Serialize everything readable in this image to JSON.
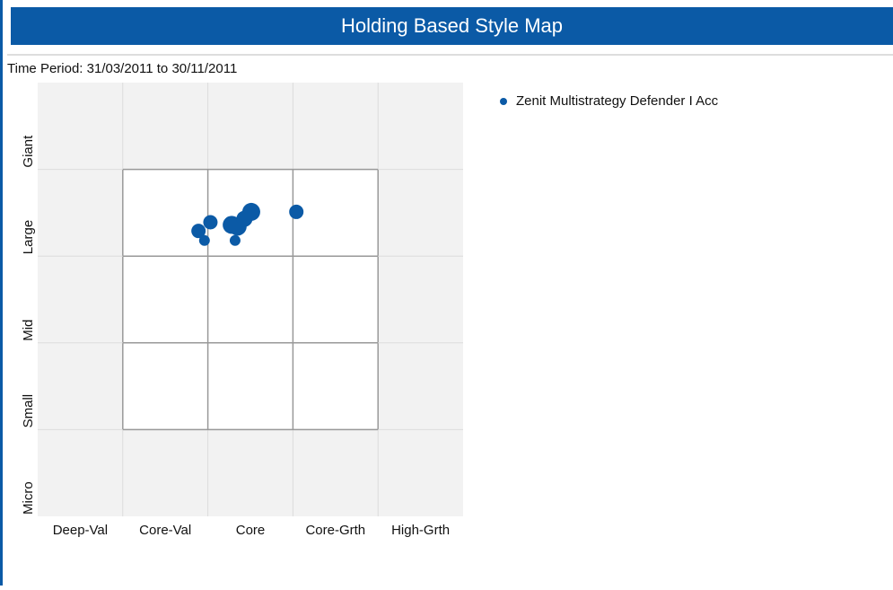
{
  "header": {
    "title": "Holding Based Style Map"
  },
  "chart_data": {
    "type": "scatter",
    "subtitle": "Time Period: 31/03/2011 to 30/11/2011",
    "x_labels": [
      "Deep-Val",
      "Core-Val",
      "Core",
      "Core-Grth",
      "High-Grth"
    ],
    "y_labels": [
      "Micro",
      "Small",
      "Mid",
      "Large",
      "Giant"
    ],
    "xlim": [
      0,
      5
    ],
    "ylim": [
      0,
      5
    ],
    "xticks": [
      1,
      2,
      3,
      4
    ],
    "yticks": [
      1,
      2,
      3,
      4
    ],
    "series": [
      {
        "name": "Zenit Multistrategy Defender I Acc",
        "color": "#0b5aa6",
        "x": [
          1.89,
          1.96,
          2.03,
          2.28,
          2.32,
          2.35,
          2.43,
          2.51,
          3.04
        ],
        "values": [
          3.29,
          3.18,
          3.39,
          3.36,
          3.18,
          3.34,
          3.43,
          3.51,
          3.51
        ],
        "sizes": [
          8,
          6,
          8,
          10,
          6,
          10,
          9,
          10,
          8
        ]
      }
    ],
    "legend": "top-right"
  }
}
